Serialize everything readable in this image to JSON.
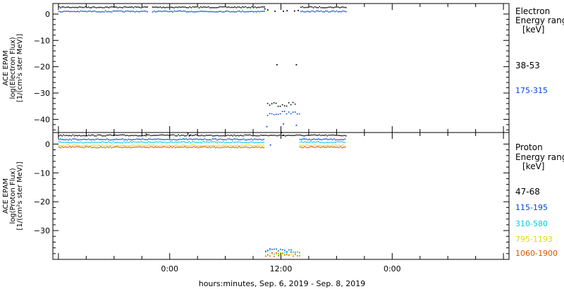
{
  "figure": {
    "xlabel": "hours:minutes, Sep.  6, 2019 - Sep.  8, 2019",
    "x_tick_labels": [
      "0:00",
      "12:00",
      "0:00"
    ]
  },
  "colors": {
    "black": "#000000",
    "blue": "#0044dd",
    "cyan": "#00ccdd",
    "yellow": "#dddd00",
    "orange": "#dd5500"
  },
  "chart_data": [
    {
      "type": "scatter",
      "panel": "electron",
      "ylabel": [
        "ACE EPAM",
        "log(Electron Flux)",
        "[1/(cm²s ster MeV)]"
      ],
      "ylim": [
        -45,
        4
      ],
      "y_ticks": [
        0,
        -10,
        -20,
        -30,
        -40
      ],
      "x_units": "hours since 0:00 Sep. 6, 2019",
      "xlim": [
        -12.6,
        36.6
      ],
      "legend_title": [
        "Electron",
        "Energy ranges",
        "[keV]"
      ],
      "series": [
        {
          "name": "38-53",
          "color": "#000000",
          "segments": [
            {
              "x": [
                -12.0,
                -2.3
              ],
              "y": 2.8
            },
            {
              "x": [
                -1.9,
                10.3
              ],
              "y": 2.8
            },
            {
              "x": [
                14.1,
                19.0
              ],
              "y": 2.8
            },
            {
              "x": [
                10.5,
                13.6
              ],
              "y": -34.0
            }
          ],
          "points": [
            [
              10.2,
              2.2
            ],
            [
              10.5,
              1.8
            ],
            [
              11.3,
              1.3
            ],
            [
              12.2,
              1.3
            ],
            [
              12.6,
              1.5
            ],
            [
              13.4,
              1.4
            ],
            [
              13.8,
              1.6
            ],
            [
              11.5,
              -19.0
            ],
            [
              13.6,
              -19.0
            ]
          ]
        },
        {
          "name": "175-315",
          "color": "#0044dd",
          "segments": [
            {
              "x": [
                -12.0,
                -2.3
              ],
              "y": 1.2
            },
            {
              "x": [
                -1.9,
                10.3
              ],
              "y": 1.2
            },
            {
              "x": [
                14.1,
                19.0
              ],
              "y": 1.2
            },
            {
              "x": [
                10.5,
                14.0
              ],
              "y": -37.5
            }
          ],
          "points": [
            [
              10.4,
              -42.5
            ],
            [
              12.2,
              -41.5
            ],
            [
              13.6,
              -42.0
            ]
          ]
        }
      ]
    },
    {
      "type": "scatter",
      "panel": "proton",
      "ylabel": [
        "ACE EPAM",
        "log(Proton Flux)",
        "[1/(cm²s ster MeV)]"
      ],
      "ylim": [
        -40,
        4
      ],
      "y_ticks": [
        0,
        -10,
        -20,
        -30
      ],
      "x_units": "hours since 0:00 Sep. 6, 2019",
      "xlim": [
        -12.6,
        36.6
      ],
      "legend_title": [
        "Proton",
        "Energy ranges",
        "[keV]"
      ],
      "series": [
        {
          "name": "47-68",
          "color": "#000000",
          "segments": [
            {
              "x": [
                -12.0,
                19.0
              ],
              "y": 3.2
            }
          ],
          "points": [
            [
              -2.6,
              3.6
            ],
            [
              1.9,
              4.0
            ],
            [
              2.1,
              3.3
            ],
            [
              12.0,
              4.2
            ],
            [
              12.2,
              3.3
            ]
          ]
        },
        {
          "name": "115-195",
          "color": "#0044dd",
          "segments": [
            {
              "x": [
                -12.0,
                10.2
              ],
              "y": 1.8
            },
            {
              "x": [
                14.0,
                19.0
              ],
              "y": 1.8
            },
            {
              "x": [
                10.3,
                14.0
              ],
              "y": -36.9
            }
          ],
          "points": [
            [
              10.8,
              -0.1
            ]
          ]
        },
        {
          "name": "310-580",
          "color": "#00ccdd",
          "segments": [
            {
              "x": [
                -12.0,
                10.2
              ],
              "y": 0.8
            },
            {
              "x": [
                14.0,
                19.0
              ],
              "y": 0.8
            },
            {
              "x": [
                10.3,
                14.0
              ],
              "y": -37.3
            }
          ],
          "points": []
        },
        {
          "name": "795-1193",
          "color": "#dddd00",
          "segments": [
            {
              "x": [
                -12.0,
                10.2
              ],
              "y": -0.3
            },
            {
              "x": [
                14.0,
                19.0
              ],
              "y": -0.3
            },
            {
              "x": [
                10.3,
                14.0
              ],
              "y": -37.7
            }
          ],
          "points": []
        },
        {
          "name": "1060-1900",
          "color": "#dd5500",
          "segments": [
            {
              "x": [
                -12.0,
                10.2
              ],
              "y": -0.9
            },
            {
              "x": [
                14.0,
                19.0
              ],
              "y": -0.9
            },
            {
              "x": [
                10.3,
                14.0
              ],
              "y": -38.1
            }
          ],
          "points": []
        }
      ]
    }
  ]
}
